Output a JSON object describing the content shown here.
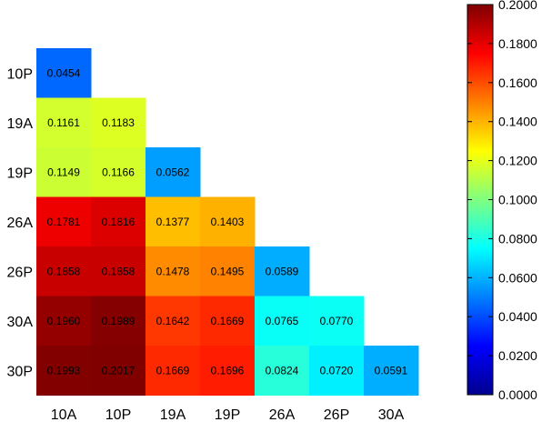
{
  "chart_data": {
    "type": "heatmap",
    "title": "",
    "xlabel": "",
    "ylabel": "",
    "x_categories": [
      "10A",
      "10P",
      "19A",
      "19P",
      "26A",
      "26P",
      "30A"
    ],
    "y_categories": [
      "10P",
      "19A",
      "19P",
      "26A",
      "26P",
      "30A",
      "30P"
    ],
    "grid": false,
    "colormap": "jet",
    "values": [
      [
        0.0454,
        null,
        null,
        null,
        null,
        null,
        null
      ],
      [
        0.1161,
        0.1183,
        null,
        null,
        null,
        null,
        null
      ],
      [
        0.1149,
        0.1166,
        0.0562,
        null,
        null,
        null,
        null
      ],
      [
        0.1781,
        0.1816,
        0.1377,
        0.1403,
        null,
        null,
        null
      ],
      [
        0.1858,
        0.1858,
        0.1478,
        0.1495,
        0.0589,
        null,
        null
      ],
      [
        0.196,
        0.1989,
        0.1642,
        0.1669,
        0.0765,
        0.077,
        null
      ],
      [
        0.1993,
        0.2017,
        0.1669,
        0.1696,
        0.0824,
        0.072,
        0.0591
      ]
    ],
    "value_labels": [
      [
        "0.0454",
        "",
        "",
        "",
        "",
        "",
        ""
      ],
      [
        "0.1161",
        "0.1183",
        "",
        "",
        "",
        "",
        ""
      ],
      [
        "0.1149",
        "0.1166",
        "0.0562",
        "",
        "",
        "",
        ""
      ],
      [
        "0.1781",
        "0.1816",
        "0.1377",
        "0.1403",
        "",
        "",
        ""
      ],
      [
        "0.1858",
        "0.1858",
        "0.1478",
        "0.1495",
        "0.0589",
        "",
        ""
      ],
      [
        "0.1960",
        "0.1989",
        "0.1642",
        "0.1669",
        "0.0765",
        "0.0770",
        ""
      ],
      [
        "0.1993",
        "0.2017",
        "0.1669",
        "0.1696",
        "0.0824",
        "0.0720",
        "0.0591"
      ]
    ],
    "colorbar": {
      "range": [
        0,
        0.2
      ],
      "ticks": [
        "0.0000",
        "0.0200",
        "0.0400",
        "0.0600",
        "0.0800",
        "0.1000",
        "0.1200",
        "0.1400",
        "0.1600",
        "0.1800",
        "0.2000"
      ],
      "placement": "right"
    }
  }
}
